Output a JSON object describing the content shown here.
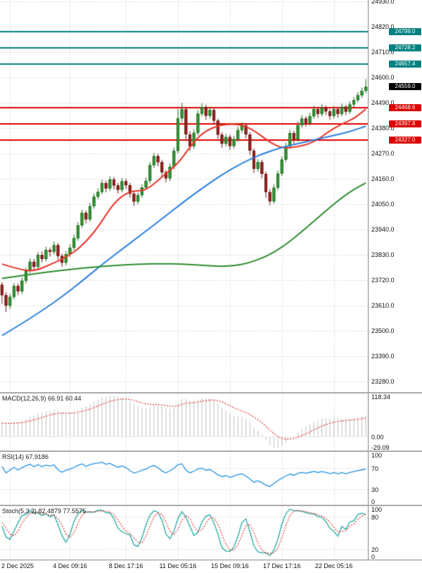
{
  "chart_data": {
    "type": "candlestick",
    "title": "",
    "ylim": [
      23235,
      24935
    ],
    "y_ticks": [
      23280,
      23390,
      23500,
      23610,
      23720,
      23830,
      23940,
      24050,
      24160,
      24270,
      24380,
      24490,
      24600,
      24710,
      24820,
      24930
    ],
    "x_ticks": [
      {
        "index": 2,
        "label": "2 Dec 2025"
      },
      {
        "index": 17,
        "label": "4 Dec 09:16"
      },
      {
        "index": 31,
        "label": "8 Dec 17:16"
      },
      {
        "index": 44,
        "label": "11 Dec 05:16"
      },
      {
        "index": 57,
        "label": "15 Dec 09:16"
      },
      {
        "index": 70,
        "label": "17 Dec 17:16"
      },
      {
        "index": 83,
        "label": "22 Dec 05:16"
      }
    ],
    "colors": {
      "background": "#ffffff",
      "grid": "#c8c8c8",
      "axis_text": "#111111",
      "separator": "#ababab",
      "up_fill": "#3d9c3d",
      "up_border": "#1c6b1c",
      "down_fill": "#972621",
      "down_border": "#6e1813"
    },
    "hlines": [
      {
        "value": 24799.0,
        "label": "24799.0",
        "color": "#008080"
      },
      {
        "value": 24728.2,
        "label": "24728.2",
        "color": "#008080"
      },
      {
        "value": 24657.4,
        "label": "24657.4",
        "color": "#008080"
      },
      {
        "value": 24468.6,
        "label": "24468.6",
        "color": "#dd0000"
      },
      {
        "value": 24397.8,
        "label": "24397.8",
        "color": "#dd0000"
      },
      {
        "value": 24327.0,
        "label": "24327.0",
        "color": "#dd0000"
      }
    ],
    "price_tag": {
      "value": 24559.0,
      "label": "24559.0",
      "color": "#000000"
    },
    "moving_averages": [
      {
        "name": "ma-fast-red",
        "color": "#e8342a",
        "points": [
          [
            0,
            23790
          ],
          [
            4,
            23768
          ],
          [
            8,
            23758
          ],
          [
            12,
            23788
          ],
          [
            16,
            23818
          ],
          [
            20,
            23868
          ],
          [
            24,
            23948
          ],
          [
            28,
            24058
          ],
          [
            32,
            24108
          ],
          [
            36,
            24108
          ],
          [
            40,
            24168
          ],
          [
            44,
            24225
          ],
          [
            47,
            24298
          ],
          [
            50,
            24358
          ],
          [
            54,
            24392
          ],
          [
            58,
            24398
          ],
          [
            61,
            24388
          ],
          [
            64,
            24358
          ],
          [
            67,
            24318
          ],
          [
            70,
            24292
          ],
          [
            74,
            24298
          ],
          [
            78,
            24318
          ],
          [
            82,
            24368
          ],
          [
            85,
            24398
          ],
          [
            88,
            24420
          ],
          [
            91,
            24462
          ]
        ]
      },
      {
        "name": "ma-mid-blue",
        "color": "#2a7fde",
        "points": [
          [
            0,
            23480
          ],
          [
            5,
            23532
          ],
          [
            10,
            23588
          ],
          [
            15,
            23648
          ],
          [
            20,
            23716
          ],
          [
            25,
            23788
          ],
          [
            30,
            23854
          ],
          [
            35,
            23920
          ],
          [
            40,
            23986
          ],
          [
            45,
            24054
          ],
          [
            50,
            24118
          ],
          [
            55,
            24178
          ],
          [
            60,
            24228
          ],
          [
            65,
            24268
          ],
          [
            70,
            24296
          ],
          [
            75,
            24316
          ],
          [
            80,
            24336
          ],
          [
            85,
            24356
          ],
          [
            88,
            24370
          ],
          [
            91,
            24388
          ]
        ]
      },
      {
        "name": "ma-slow-green",
        "color": "#2e8b2e",
        "points": [
          [
            0,
            23728
          ],
          [
            5,
            23740
          ],
          [
            10,
            23752
          ],
          [
            15,
            23763
          ],
          [
            20,
            23772
          ],
          [
            25,
            23780
          ],
          [
            30,
            23786
          ],
          [
            35,
            23790
          ],
          [
            40,
            23792
          ],
          [
            45,
            23790
          ],
          [
            50,
            23785
          ],
          [
            54,
            23780
          ],
          [
            58,
            23782
          ],
          [
            62,
            23796
          ],
          [
            66,
            23822
          ],
          [
            70,
            23862
          ],
          [
            74,
            23916
          ],
          [
            78,
            23976
          ],
          [
            82,
            24036
          ],
          [
            85,
            24078
          ],
          [
            88,
            24114
          ],
          [
            91,
            24142
          ]
        ]
      }
    ],
    "candles": [
      [
        23700,
        23712,
        23618,
        23655
      ],
      [
        23655,
        23668,
        23582,
        23610
      ],
      [
        23610,
        23661,
        23595,
        23648
      ],
      [
        23648,
        23708,
        23636,
        23695
      ],
      [
        23695,
        23706,
        23655,
        23672
      ],
      [
        23672,
        23731,
        23660,
        23718
      ],
      [
        23718,
        23775,
        23706,
        23762
      ],
      [
        23762,
        23815,
        23750,
        23800
      ],
      [
        23800,
        23812,
        23762,
        23778
      ],
      [
        23778,
        23842,
        23766,
        23830
      ],
      [
        23830,
        23845,
        23796,
        23812
      ],
      [
        23812,
        23866,
        23801,
        23851
      ],
      [
        23851,
        23862,
        23822,
        23843
      ],
      [
        23843,
        23888,
        23831,
        23872
      ],
      [
        23872,
        23881,
        23808,
        23825
      ],
      [
        23825,
        23836,
        23778,
        23796
      ],
      [
        23796,
        23846,
        23784,
        23833
      ],
      [
        23833,
        23876,
        23821,
        23861
      ],
      [
        23861,
        23918,
        23850,
        23902
      ],
      [
        23902,
        23972,
        23891,
        23958
      ],
      [
        23958,
        24026,
        23947,
        24012
      ],
      [
        24012,
        24022,
        23966,
        23984
      ],
      [
        23984,
        24055,
        23973,
        24041
      ],
      [
        24041,
        24096,
        24030,
        24082
      ],
      [
        24082,
        24118,
        24070,
        24103
      ],
      [
        24103,
        24156,
        24092,
        24141
      ],
      [
        24141,
        24152,
        24101,
        24118
      ],
      [
        24118,
        24171,
        24106,
        24157
      ],
      [
        24157,
        24168,
        24114,
        24131
      ],
      [
        24131,
        24142,
        24095,
        24112
      ],
      [
        24112,
        24163,
        24101,
        24149
      ],
      [
        24149,
        24160,
        24115,
        24132
      ],
      [
        24132,
        24142,
        24078,
        24095
      ],
      [
        24095,
        24106,
        24042,
        24061
      ],
      [
        24061,
        24101,
        24049,
        24089
      ],
      [
        24089,
        24136,
        24078,
        24122
      ],
      [
        24122,
        24166,
        24111,
        24151
      ],
      [
        24151,
        24233,
        24140,
        24219
      ],
      [
        24219,
        24272,
        24207,
        24258
      ],
      [
        24258,
        24268,
        24214,
        24232
      ],
      [
        24232,
        24242,
        24170,
        24188
      ],
      [
        24188,
        24198,
        24144,
        24162
      ],
      [
        24162,
        24226,
        24150,
        24212
      ],
      [
        24212,
        24296,
        24201,
        24281
      ],
      [
        24281,
        24462,
        24270,
        24422
      ],
      [
        24422,
        24489,
        24405,
        24461
      ],
      [
        24461,
        24472,
        24330,
        24352
      ],
      [
        24352,
        24366,
        24281,
        24301
      ],
      [
        24301,
        24374,
        24290,
        24359
      ],
      [
        24359,
        24458,
        24348,
        24442
      ],
      [
        24442,
        24487,
        24430,
        24471
      ],
      [
        24471,
        24481,
        24415,
        24433
      ],
      [
        24433,
        24473,
        24421,
        24458
      ],
      [
        24458,
        24468,
        24395,
        24412
      ],
      [
        24412,
        24421,
        24332,
        24351
      ],
      [
        24351,
        24362,
        24294,
        24312
      ],
      [
        24312,
        24355,
        24300,
        24341
      ],
      [
        24341,
        24351,
        24284,
        24302
      ],
      [
        24302,
        24346,
        24291,
        24332
      ],
      [
        24332,
        24386,
        24321,
        24371
      ],
      [
        24371,
        24406,
        24359,
        24391
      ],
      [
        24391,
        24401,
        24334,
        24352
      ],
      [
        24352,
        24362,
        24263,
        24282
      ],
      [
        24282,
        24292,
        24184,
        24203
      ],
      [
        24203,
        24246,
        24191,
        24232
      ],
      [
        24232,
        24242,
        24162,
        24181
      ],
      [
        24181,
        24191,
        24078,
        24102
      ],
      [
        24102,
        24116,
        24046,
        24062
      ],
      [
        24062,
        24136,
        24052,
        24121
      ],
      [
        24121,
        24196,
        24110,
        24182
      ],
      [
        24182,
        24257,
        24171,
        24243
      ],
      [
        24243,
        24316,
        24232,
        24301
      ],
      [
        24301,
        24372,
        24290,
        24358
      ],
      [
        24358,
        24368,
        24312,
        24331
      ],
      [
        24331,
        24407,
        24321,
        24392
      ],
      [
        24392,
        24436,
        24381,
        24421
      ],
      [
        24421,
        24431,
        24385,
        24402
      ],
      [
        24402,
        24446,
        24391,
        24431
      ],
      [
        24431,
        24477,
        24420,
        24462
      ],
      [
        24462,
        24471,
        24424,
        24441
      ],
      [
        24441,
        24483,
        24430,
        24468
      ],
      [
        24468,
        24478,
        24436,
        24452
      ],
      [
        24452,
        24462,
        24415,
        24432
      ],
      [
        24432,
        24476,
        24421,
        24461
      ],
      [
        24461,
        24470,
        24424,
        24441
      ],
      [
        24441,
        24486,
        24431,
        24472
      ],
      [
        24472,
        24481,
        24435,
        24451
      ],
      [
        24451,
        24496,
        24441,
        24482
      ],
      [
        24482,
        24514,
        24471,
        24501
      ],
      [
        24501,
        24536,
        24492,
        24522
      ],
      [
        24522,
        24556,
        24511,
        24541
      ],
      [
        24541,
        24592,
        24531,
        24559
      ]
    ],
    "indicators": {
      "macd": {
        "label": "MACD(12,26,9) 66.91 60.44",
        "params": [
          12,
          26,
          9
        ],
        "values": [
          66.91,
          60.44
        ],
        "scale_max": 118.34,
        "axis_marks": [
          {
            "value": 118.34,
            "label": "118.34"
          },
          {
            "value": 0,
            "label": "0.00"
          },
          {
            "value": -29.09,
            "label": "-29.09"
          }
        ],
        "histogram_color": "#c0c0c0",
        "signal_color": "#e03030"
      },
      "rsi": {
        "label": "RSI(14) 67.9186",
        "period": 14,
        "value": 67.9186,
        "levels": [
          70,
          30
        ],
        "axis_marks": [
          {
            "value": 100,
            "label": "100"
          },
          {
            "value": 70,
            "label": "70"
          },
          {
            "value": 30,
            "label": "30"
          },
          {
            "value": 0,
            "label": "0"
          }
        ],
        "line_color": "#2090e0"
      },
      "stoch": {
        "label": "Stoch(5,3,3) 82.4879 77.5575",
        "params": [
          5,
          3,
          3
        ],
        "values": [
          82.4879,
          77.5575
        ],
        "levels": [
          80,
          20
        ],
        "axis_marks": [
          {
            "value": 100,
            "label": "100"
          },
          {
            "value": 80,
            "label": "80"
          },
          {
            "value": 20,
            "label": "20"
          },
          {
            "value": 0,
            "label": "0"
          }
        ],
        "k_color": "#1fa8a0",
        "d_color": "#e03030"
      }
    }
  }
}
